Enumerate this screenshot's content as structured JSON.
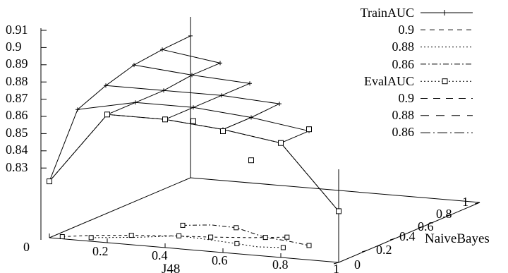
{
  "chart_data": {
    "type": "surface3d",
    "title": "",
    "xlabel": "J48",
    "ylabel": "NaiveBayes",
    "zlabel": "",
    "xlim": [
      0,
      1
    ],
    "ylim": [
      0,
      1
    ],
    "zlim": [
      0.83,
      0.91
    ],
    "x_ticks": [
      "0",
      "0.2",
      "0.4",
      "0.6",
      "0.8",
      "1"
    ],
    "y_ticks": [
      "0",
      "0.2",
      "0.4",
      "0.6",
      "0.8",
      "1"
    ],
    "z_ticks": [
      "0.91",
      "0.9",
      "0.89",
      "0.88",
      "0.87",
      "0.86",
      "0.85",
      "0.84",
      "0.83"
    ],
    "legend_position": "top-right",
    "legend": [
      {
        "label": "TrainAUC",
        "style": "solid-plus"
      },
      {
        "label": "0.9",
        "style": "dashed"
      },
      {
        "label": "0.88",
        "style": "dotted"
      },
      {
        "label": "0.86",
        "style": "dash-dot"
      },
      {
        "label": "EvalAUC",
        "style": "dotted-square"
      },
      {
        "label": "0.9",
        "style": "long-dash"
      },
      {
        "label": "0.88",
        "style": "dashed-wide"
      },
      {
        "label": "0.86",
        "style": "long-dash-dot"
      }
    ],
    "series": [
      {
        "name": "TrainAUC",
        "points": [
          {
            "x": 0.0,
            "y": 0.0,
            "z": 0.858
          },
          {
            "x": 0.0,
            "y": 0.2,
            "z": 0.893
          },
          {
            "x": 0.0,
            "y": 0.4,
            "z": 0.9
          },
          {
            "x": 0.0,
            "y": 0.6,
            "z": 0.905
          },
          {
            "x": 0.0,
            "y": 0.8,
            "z": 0.907
          },
          {
            "x": 0.0,
            "y": 1.0,
            "z": 0.908
          },
          {
            "x": 0.2,
            "y": 0.0,
            "z": 0.9
          },
          {
            "x": 0.2,
            "y": 0.2,
            "z": 0.9
          },
          {
            "x": 0.2,
            "y": 0.4,
            "z": 0.9
          },
          {
            "x": 0.2,
            "y": 0.6,
            "z": 0.902
          },
          {
            "x": 0.2,
            "y": 0.8,
            "z": 0.902
          },
          {
            "x": 0.4,
            "y": 0.0,
            "z": 0.9
          },
          {
            "x": 0.4,
            "y": 0.2,
            "z": 0.9
          },
          {
            "x": 0.4,
            "y": 0.4,
            "z": 0.9
          },
          {
            "x": 0.4,
            "y": 0.6,
            "z": 0.9
          },
          {
            "x": 0.6,
            "y": 0.0,
            "z": 0.897
          },
          {
            "x": 0.6,
            "y": 0.2,
            "z": 0.897
          },
          {
            "x": 0.6,
            "y": 0.4,
            "z": 0.898
          },
          {
            "x": 0.8,
            "y": 0.0,
            "z": 0.892
          },
          {
            "x": 0.8,
            "y": 0.2,
            "z": 0.892
          },
          {
            "x": 1.0,
            "y": 0.0,
            "z": 0.855
          }
        ]
      },
      {
        "name": "EvalAUC",
        "points": [
          {
            "x": 0.0,
            "y": 0.0,
            "z": 0.858
          },
          {
            "x": 0.2,
            "y": 0.0,
            "z": 0.9
          },
          {
            "x": 0.4,
            "y": 0.0,
            "z": 0.9
          },
          {
            "x": 0.6,
            "y": 0.0,
            "z": 0.896
          },
          {
            "x": 0.8,
            "y": 0.0,
            "z": 0.892
          },
          {
            "x": 1.0,
            "y": 0.0,
            "z": 0.855
          },
          {
            "x": 0.4,
            "y": 0.2,
            "z": 0.892
          },
          {
            "x": 0.6,
            "y": 0.2,
            "z": 0.872
          },
          {
            "x": 0.8,
            "y": 0.2,
            "z": 0.893
          }
        ]
      }
    ]
  }
}
